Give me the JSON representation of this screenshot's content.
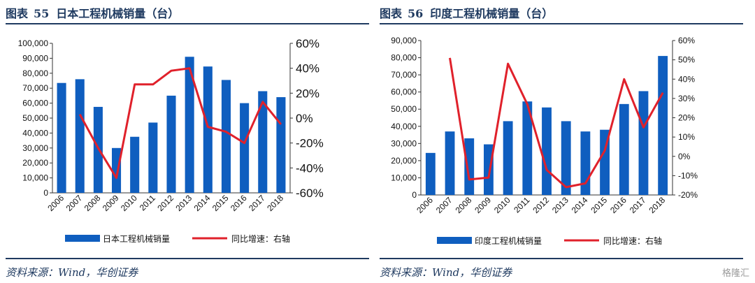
{
  "left": {
    "title_prefix": "图表",
    "title_number": "55",
    "title_text": "日本工程机械销量（台）",
    "source": "资料来源：Wind，华创证券"
  },
  "right": {
    "title_prefix": "图表",
    "title_number": "56",
    "title_text": "印度工程机械销量（台）",
    "source": "资料来源：Wind，华创证券"
  },
  "watermark": "格隆汇",
  "colors": {
    "bar": "#0f5ebf",
    "line": "#e0212b",
    "title": "#1f3a60"
  },
  "chart_data": [
    {
      "type": "bar+line",
      "categories": [
        "2006",
        "2007",
        "2008",
        "2009",
        "2010",
        "2011",
        "2012",
        "2013",
        "2014",
        "2015",
        "2016",
        "2017",
        "2018"
      ],
      "series": [
        {
          "name": "日本工程机械销量",
          "type": "bar",
          "axis": "left",
          "values": [
            73500,
            76000,
            57500,
            30000,
            37500,
            47000,
            65000,
            91000,
            84500,
            75500,
            60000,
            68000,
            64000
          ]
        },
        {
          "name": "同比增速：右轴",
          "type": "line",
          "axis": "right",
          "values": [
            null,
            3,
            -24,
            -48,
            27,
            27,
            38,
            40,
            -7,
            -11,
            -20,
            13,
            -5
          ]
        }
      ],
      "y_left": {
        "min": 0,
        "max": 100000,
        "ticks": [
          "0",
          "10,000",
          "20,000",
          "30,000",
          "40,000",
          "50,000",
          "60,000",
          "70,000",
          "80,000",
          "90,000",
          "100,000"
        ]
      },
      "y_right": {
        "min": -60,
        "max": 60,
        "unit": "%",
        "ticks": [
          "-60%",
          "-40%",
          "-20%",
          "0%",
          "20%",
          "40%",
          "60%"
        ]
      },
      "legend": {
        "placement": "bottom",
        "bar_label": "日本工程机械销量",
        "line_label": "同比增速：右轴"
      },
      "grid": false
    },
    {
      "type": "bar+line",
      "categories": [
        "2006",
        "2007",
        "2008",
        "2009",
        "2010",
        "2011",
        "2012",
        "2013",
        "2014",
        "2015",
        "2016",
        "2017",
        "2018"
      ],
      "series": [
        {
          "name": "印度工程机械销量",
          "type": "bar",
          "axis": "left",
          "values": [
            24500,
            37000,
            33000,
            29500,
            43000,
            54500,
            51000,
            43000,
            37000,
            38000,
            53000,
            60500,
            81000
          ]
        },
        {
          "name": "同比增速：右轴",
          "type": "line",
          "axis": "right",
          "values": [
            null,
            51,
            -12,
            -11,
            48,
            27,
            -7,
            -16,
            -14,
            3,
            40,
            15,
            33
          ]
        }
      ],
      "y_left": {
        "min": 0,
        "max": 90000,
        "ticks": [
          "0",
          "10,000",
          "20,000",
          "30,000",
          "40,000",
          "50,000",
          "60,000",
          "70,000",
          "80,000",
          "90,000"
        ]
      },
      "y_right": {
        "min": -20,
        "max": 60,
        "unit": "%",
        "ticks": [
          "-20%",
          "-10%",
          "0%",
          "10%",
          "20%",
          "30%",
          "40%",
          "50%",
          "60%"
        ]
      },
      "legend": {
        "placement": "bottom",
        "bar_label": "印度工程机械销量",
        "line_label": "同比增速：右轴"
      },
      "grid": false
    }
  ]
}
